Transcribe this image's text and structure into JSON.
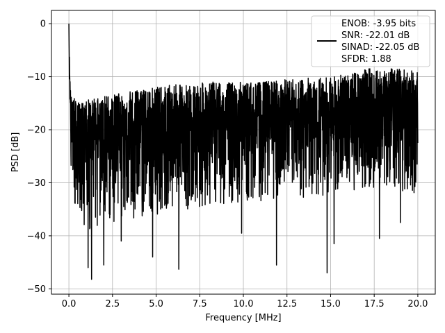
{
  "chart_data": {
    "type": "line",
    "title": "",
    "xlabel": "Frequency [MHz]",
    "ylabel": "PSD [dB]",
    "xlim": [
      -1.0,
      21.0
    ],
    "ylim": [
      -51.0,
      2.5
    ],
    "xticks": [
      0.0,
      2.5,
      5.0,
      7.5,
      10.0,
      12.5,
      15.0,
      17.5,
      20.0
    ],
    "xtick_labels": [
      "0.0",
      "2.5",
      "5.0",
      "7.5",
      "10.0",
      "12.5",
      "15.0",
      "17.5",
      "20.0"
    ],
    "yticks": [
      0,
      -10,
      -20,
      -30,
      -40,
      -50
    ],
    "ytick_labels": [
      "0",
      "−10",
      "−20",
      "−30",
      "−40",
      "−50"
    ],
    "grid": true,
    "legend_position": "top-right",
    "legend_lines": [
      "ENOB: -3.95 bits",
      "SNR: -22.01 dB",
      "SINAD: -22.05 dB",
      "SFDR: 1.88"
    ],
    "series": [
      {
        "color": "#000000",
        "style": "noise-like dense trace",
        "x": [
          0.0,
          0.04,
          0.08,
          0.12,
          0.16,
          0.2,
          0.3,
          0.5,
          0.75,
          1.0,
          1.25,
          1.5,
          2.0,
          2.5,
          3.0,
          4.0,
          5.0,
          6.0,
          7.0,
          8.0,
          9.0,
          10.0,
          11.0,
          12.0,
          13.0,
          14.0,
          15.0,
          16.0,
          17.0,
          17.5,
          18.0,
          19.0,
          20.0
        ],
        "upper": [
          0.0,
          -7.5,
          -10.5,
          -12.5,
          -13.5,
          -14.5,
          -14.0,
          -15.0,
          -14.5,
          -14.0,
          -14.5,
          -14.0,
          -13.5,
          -13.5,
          -13.0,
          -12.5,
          -12.0,
          -11.5,
          -11.5,
          -11.0,
          -11.0,
          -11.0,
          -11.0,
          -10.5,
          -10.5,
          -10.0,
          -10.0,
          -9.5,
          -8.5,
          -8.0,
          -8.5,
          -8.5,
          -9.0
        ],
        "mid": [
          0.0,
          -12.0,
          -16.0,
          -19.0,
          -20.5,
          -21.0,
          -21.5,
          -22.0,
          -22.0,
          -22.0,
          -22.0,
          -21.5,
          -21.5,
          -21.0,
          -21.0,
          -20.5,
          -20.5,
          -20.0,
          -20.0,
          -20.0,
          -19.5,
          -19.5,
          -19.5,
          -19.0,
          -19.0,
          -18.5,
          -18.5,
          -18.0,
          -17.5,
          -17.0,
          -17.5,
          -17.5,
          -18.0
        ],
        "lower": [
          0.0,
          -22.0,
          -25.0,
          -27.0,
          -28.5,
          -30.0,
          -34.0,
          -37.0,
          -38.5,
          -39.0,
          -39.0,
          -38.5,
          -38.0,
          -37.5,
          -37.0,
          -36.5,
          -36.0,
          -35.5,
          -35.0,
          -34.5,
          -34.0,
          -34.0,
          -33.5,
          -33.0,
          -33.0,
          -33.0,
          -32.5,
          -32.0,
          -31.0,
          -31.0,
          -31.0,
          -31.5,
          -32.0
        ],
        "deep_dips": [
          [
            1.1,
            -46.0
          ],
          [
            1.3,
            -48.2
          ],
          [
            2.0,
            -45.5
          ],
          [
            3.0,
            -41.0
          ],
          [
            4.8,
            -44.0
          ],
          [
            6.3,
            -46.3
          ],
          [
            9.9,
            -39.5
          ],
          [
            11.9,
            -45.5
          ],
          [
            14.8,
            -47.0
          ],
          [
            15.2,
            -41.5
          ],
          [
            17.8,
            -40.5
          ],
          [
            19.0,
            -37.5
          ]
        ]
      }
    ]
  }
}
